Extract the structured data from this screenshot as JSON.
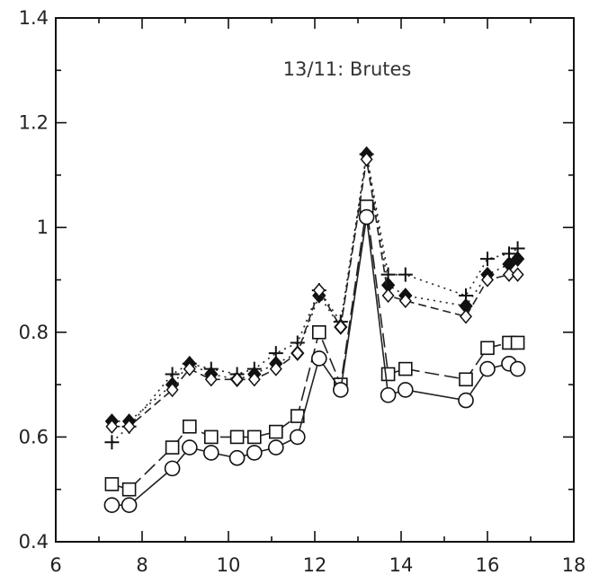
{
  "chart_data": {
    "type": "line",
    "title": "13/11: Brutes",
    "xlabel": "",
    "ylabel": "",
    "xlim": [
      6,
      18
    ],
    "ylim": [
      0.4,
      1.4
    ],
    "xticks": [
      6,
      8,
      10,
      12,
      14,
      16,
      18
    ],
    "yticks": [
      0.4,
      0.6,
      0.8,
      1,
      1.2,
      1.4
    ],
    "xtick_labels": [
      "6",
      "8",
      "10",
      "12",
      "14",
      "16",
      "18"
    ],
    "ytick_labels": [
      "0.4",
      "0.6",
      "0.8",
      "1",
      "1.2",
      "1.4"
    ],
    "grid": false,
    "series": [
      {
        "marker": "plus",
        "line": "dotted",
        "x": [
          7.3,
          7.7,
          8.7,
          9.1,
          9.6,
          10.2,
          10.6,
          11.1,
          11.6,
          12.1,
          12.6,
          13.2,
          13.7,
          14.1,
          15.5,
          16.0,
          16.5,
          16.7
        ],
        "y": [
          0.59,
          0.62,
          0.72,
          0.74,
          0.73,
          0.72,
          0.73,
          0.76,
          0.78,
          0.88,
          0.82,
          1.14,
          0.91,
          0.91,
          0.87,
          0.94,
          0.95,
          0.96
        ]
      },
      {
        "marker": "filled-diamond",
        "line": "dotted",
        "x": [
          7.3,
          7.7,
          8.7,
          9.1,
          9.6,
          10.2,
          10.6,
          11.1,
          11.6,
          12.1,
          12.6,
          13.2,
          13.7,
          14.1,
          15.5,
          16.0,
          16.5,
          16.7
        ],
        "y": [
          0.63,
          0.63,
          0.7,
          0.74,
          0.72,
          0.71,
          0.72,
          0.74,
          0.76,
          0.87,
          0.81,
          1.14,
          0.89,
          0.87,
          0.85,
          0.91,
          0.93,
          0.94
        ]
      },
      {
        "marker": "open-diamond",
        "line": "dashed",
        "x": [
          7.3,
          7.7,
          8.7,
          9.1,
          9.6,
          10.2,
          10.6,
          11.1,
          11.6,
          12.1,
          12.6,
          13.2,
          13.7,
          14.1,
          15.5,
          16.0,
          16.5,
          16.7
        ],
        "y": [
          0.62,
          0.62,
          0.69,
          0.73,
          0.71,
          0.71,
          0.71,
          0.73,
          0.76,
          0.88,
          0.81,
          1.13,
          0.87,
          0.86,
          0.83,
          0.9,
          0.91,
          0.91
        ]
      },
      {
        "marker": "square",
        "line": "long-dash",
        "x": [
          7.3,
          7.7,
          8.7,
          9.1,
          9.6,
          10.2,
          10.6,
          11.1,
          11.6,
          12.1,
          12.6,
          13.2,
          13.7,
          14.1,
          15.5,
          16.0,
          16.5,
          16.7
        ],
        "y": [
          0.51,
          0.5,
          0.58,
          0.62,
          0.6,
          0.6,
          0.6,
          0.61,
          0.64,
          0.8,
          0.7,
          1.04,
          0.72,
          0.73,
          0.71,
          0.77,
          0.78,
          0.78
        ]
      },
      {
        "marker": "circle",
        "line": "solid",
        "x": [
          7.3,
          7.7,
          8.7,
          9.1,
          9.6,
          10.2,
          10.6,
          11.1,
          11.6,
          12.1,
          12.6,
          13.2,
          13.7,
          14.1,
          15.5,
          16.0,
          16.5,
          16.7
        ],
        "y": [
          0.47,
          0.47,
          0.54,
          0.58,
          0.57,
          0.56,
          0.57,
          0.58,
          0.6,
          0.75,
          0.69,
          1.02,
          0.68,
          0.69,
          0.67,
          0.73,
          0.74,
          0.73
        ]
      }
    ]
  }
}
